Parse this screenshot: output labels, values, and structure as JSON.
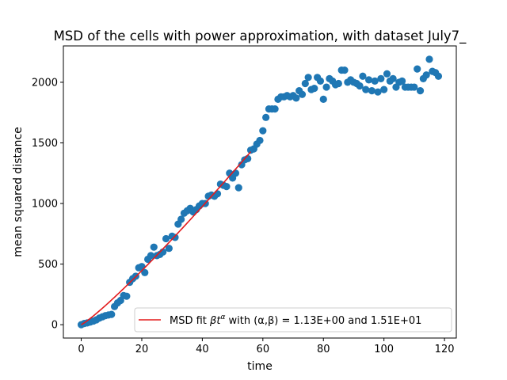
{
  "chart_data": {
    "type": "scatter",
    "title": "MSD of the cells with power approximation, with dataset July7_",
    "xlabel": "time",
    "ylabel": "mean squared distance",
    "xlim": [
      -5.9,
      123.9
    ],
    "ylim": [
      -110,
      2300
    ],
    "xticks": [
      0,
      20,
      40,
      60,
      80,
      100,
      120
    ],
    "yticks": [
      0,
      500,
      1000,
      1500,
      2000
    ],
    "xtick_labels": [
      "0",
      "20",
      "40",
      "60",
      "80",
      "100",
      "120"
    ],
    "ytick_labels": [
      "0",
      "500",
      "1000",
      "1500",
      "2000"
    ],
    "legend": {
      "placement": "lower-right",
      "label_prefix": "MSD fit ",
      "label_formula": "βt",
      "label_exponent": "α",
      "label_mid": " with (α,β) =  ",
      "label_values": "1.13E+00 and 1.51E+01"
    },
    "colors": {
      "scatter": "#1f77b4",
      "fit": "#e31a1c"
    },
    "fit": {
      "alpha": 1.13,
      "beta": 15.1,
      "x_range": [
        0,
        56
      ]
    },
    "series": [
      {
        "values_x": [
          0,
          1,
          2,
          3,
          4,
          5,
          6,
          7,
          8,
          9,
          10,
          11,
          12,
          13,
          14,
          15,
          16,
          17,
          18,
          19,
          20,
          21,
          22,
          23,
          24,
          25,
          26,
          27,
          28,
          29,
          30,
          31,
          32,
          33,
          34,
          35,
          36,
          37,
          38,
          39,
          40,
          41,
          42,
          43,
          44,
          45,
          46,
          47,
          48,
          49,
          50,
          51,
          52,
          53,
          54,
          55,
          56,
          57,
          58,
          59,
          60,
          61,
          62,
          63,
          64,
          65,
          66,
          67,
          68,
          69,
          70,
          71,
          72,
          73,
          74,
          75,
          76,
          77,
          78,
          79,
          80,
          81,
          82,
          83,
          84,
          85,
          86,
          87,
          88,
          89,
          90,
          91,
          92,
          93,
          94,
          95,
          96,
          97,
          98,
          99,
          100,
          101,
          102,
          103,
          104,
          105,
          106,
          107,
          108,
          109,
          110,
          111,
          112,
          113,
          114,
          115,
          116,
          117,
          118
        ],
        "values_y": [
          0,
          10,
          15,
          22,
          30,
          40,
          55,
          65,
          75,
          80,
          85,
          150,
          180,
          200,
          240,
          235,
          350,
          380,
          400,
          470,
          480,
          430,
          540,
          570,
          640,
          570,
          580,
          600,
          710,
          630,
          730,
          720,
          830,
          870,
          920,
          940,
          960,
          930,
          950,
          980,
          1000,
          1000,
          1060,
          1070,
          1060,
          1080,
          1160,
          1150,
          1140,
          1250,
          1210,
          1250,
          1130,
          1320,
          1360,
          1370,
          1440,
          1450,
          1490,
          1520,
          1600,
          1710,
          1780,
          1780,
          1780,
          1860,
          1880,
          1880,
          1890,
          1880,
          1890,
          1870,
          1930,
          1900,
          1990,
          2040,
          1940,
          1950,
          2040,
          2010,
          1860,
          1960,
          2030,
          2010,
          1980,
          1990,
          2100,
          2100,
          2000,
          2020,
          2000,
          1990,
          1970,
          2050,
          1940,
          2020,
          1930,
          2010,
          1920,
          2030,
          1940,
          2070,
          2010,
          2030,
          1960,
          2000,
          2010,
          1960,
          1960,
          1960,
          1960,
          2110,
          1930,
          2030,
          2060,
          2190,
          2090,
          2080,
          2050
        ]
      }
    ]
  }
}
